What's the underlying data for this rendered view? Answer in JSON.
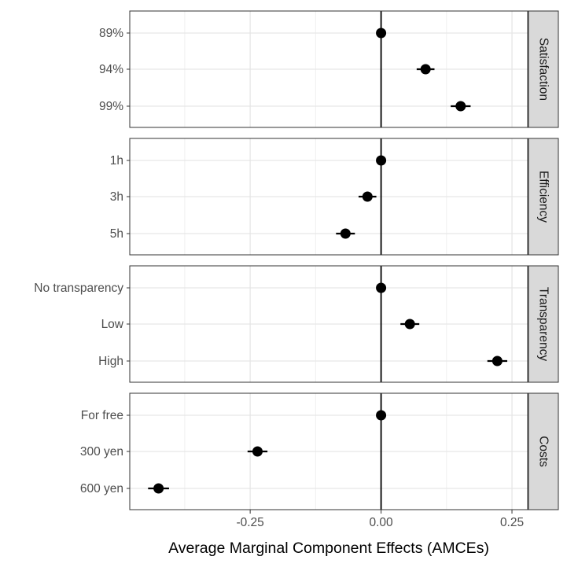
{
  "chart_data": {
    "type": "scatter",
    "subtype": "faceted coefficient plot with error bars",
    "xlabel": "Average Marginal Component Effects (AMCEs)",
    "ylabel": "",
    "xlim": [
      -0.48,
      0.28
    ],
    "x_ticks": [
      -0.25,
      0.0,
      0.25
    ],
    "x_tick_labels": [
      "-0.25",
      "0.00",
      "0.25"
    ],
    "reference_line": 0,
    "grid": true,
    "legend": "none",
    "point_color": "#000000",
    "facet_strip_color": "#d9d9d9",
    "panels": [
      {
        "label": "Satisfaction",
        "points": [
          {
            "level": "89%",
            "estimate": 0.0,
            "lower": 0.0,
            "upper": 0.0
          },
          {
            "level": "94%",
            "estimate": 0.085,
            "lower": 0.068,
            "upper": 0.102
          },
          {
            "level": "99%",
            "estimate": 0.152,
            "lower": 0.133,
            "upper": 0.171
          }
        ]
      },
      {
        "label": "Efficiency",
        "points": [
          {
            "level": "1h",
            "estimate": 0.0,
            "lower": 0.0,
            "upper": 0.0
          },
          {
            "level": "3h",
            "estimate": -0.026,
            "lower": -0.043,
            "upper": -0.009
          },
          {
            "level": "5h",
            "estimate": -0.068,
            "lower": -0.086,
            "upper": -0.05
          }
        ]
      },
      {
        "label": "Transparency",
        "points": [
          {
            "level": "No transparency",
            "estimate": 0.0,
            "lower": 0.0,
            "upper": 0.0
          },
          {
            "level": "Low",
            "estimate": 0.055,
            "lower": 0.037,
            "upper": 0.073
          },
          {
            "level": "High",
            "estimate": 0.222,
            "lower": 0.203,
            "upper": 0.241
          }
        ]
      },
      {
        "label": "Costs",
        "points": [
          {
            "level": "For free",
            "estimate": 0.0,
            "lower": 0.0,
            "upper": 0.0
          },
          {
            "level": "300 yen",
            "estimate": -0.236,
            "lower": -0.255,
            "upper": -0.217
          },
          {
            "level": "600 yen",
            "estimate": -0.425,
            "lower": -0.445,
            "upper": -0.405
          }
        ]
      }
    ]
  }
}
